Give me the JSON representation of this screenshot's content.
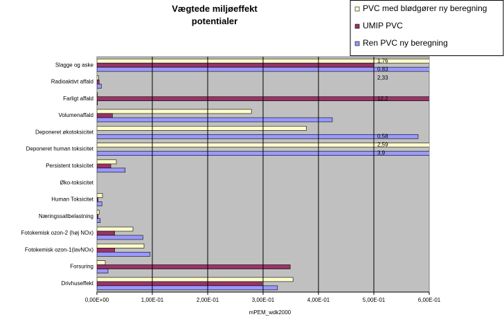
{
  "chart_data": {
    "type": "hbar",
    "title": "Vægtede miljøeffekt potentialer",
    "x_label": "mPEM_wdk2000",
    "categories": [
      "Slagge og aske",
      "Radioaktivt affald",
      "Farligt affald",
      "Volumenaffald",
      "Deponeret økotoksicitet",
      "Deponeret human toksicitet",
      "Persistent toksicitet",
      "Øko-toksicitet",
      "Human Toksicitet",
      "Næringssaltbelastning",
      "Fotokemisk ozon-2 (høj NOx)",
      "Fotokemisk ozon-1(lavNOx)",
      "Forsuring",
      "Drivhuseffekt"
    ],
    "series": [
      {
        "name": "PVC med blødgører ny beregning",
        "color": "#ffffcc",
        "values": [
          1.76,
          0.003,
          0.001,
          0.279,
          0.378,
          2.59,
          0.035,
          0,
          0.01,
          0.004,
          0.065,
          0.085,
          0.015,
          0.354
        ],
        "value_labels": [
          "1,76",
          null,
          null,
          null,
          null,
          "2,59",
          null,
          null,
          null,
          null,
          null,
          null,
          null,
          null
        ]
      },
      {
        "name": "UMIP PVC",
        "color": "#993366",
        "values": [
          0.5,
          0.004,
          12.2,
          0.028,
          0,
          0,
          0.025,
          0,
          0.002,
          0.002,
          0.032,
          0.032,
          0.349,
          0.298
        ],
        "value_labels": [
          null,
          null,
          "12,2",
          null,
          null,
          null,
          null,
          null,
          null,
          null,
          null,
          null,
          null,
          null
        ]
      },
      {
        "name": "Ren PVC ny beregning",
        "color": "#9999ff",
        "values": [
          0.83,
          0.008,
          0.001,
          0.425,
          0.58,
          3.9,
          0.051,
          0,
          0.009,
          0.006,
          0.083,
          0.096,
          0.02,
          0.326
        ],
        "value_labels": [
          "0,83",
          null,
          null,
          null,
          "0,58",
          "3,9",
          null,
          null,
          null,
          null,
          null,
          null,
          null,
          null
        ]
      }
    ],
    "annotations": [
      "2,33"
    ],
    "xlim": [
      0,
      0.6
    ],
    "xticks": [
      {
        "value": 0,
        "label": "0,00E+00"
      },
      {
        "value": 0.1,
        "label": "1,00E-01"
      },
      {
        "value": 0.2,
        "label": "2,00E-01"
      },
      {
        "value": 0.3,
        "label": "3,00E-01"
      },
      {
        "value": 0.4,
        "label": "4,00E-01"
      },
      {
        "value": 0.5,
        "label": "5,00E-01"
      },
      {
        "value": 0.6,
        "label": "6,00E-01"
      }
    ],
    "grid": true
  }
}
